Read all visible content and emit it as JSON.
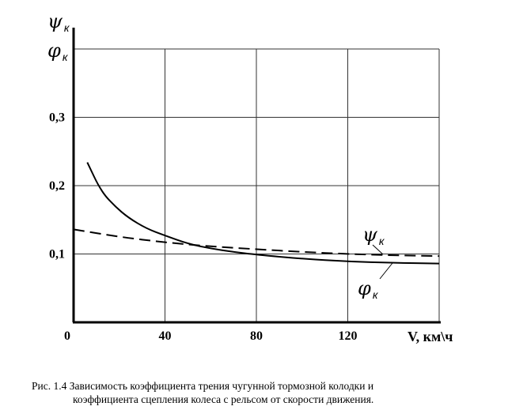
{
  "chart_data": {
    "type": "line",
    "title": "",
    "xlabel": "V,  км\\ч",
    "ylabel_top": {
      "symbol": "ψ",
      "subscript": "к"
    },
    "ylabel_bottom": {
      "symbol": "φ",
      "subscript": "к"
    },
    "xlim": [
      0,
      160
    ],
    "ylim": [
      0,
      0.4
    ],
    "x_ticks": [
      {
        "value": 0,
        "label": "0"
      },
      {
        "value": 40,
        "label": "40"
      },
      {
        "value": 80,
        "label": "80"
      },
      {
        "value": 120,
        "label": "120"
      }
    ],
    "y_ticks": [
      {
        "value": 0.1,
        "label": "0,1"
      },
      {
        "value": 0.2,
        "label": "0,2"
      },
      {
        "value": 0.3,
        "label": "0,3"
      }
    ],
    "grid": true,
    "series": [
      {
        "name": "φк",
        "style": "solid",
        "label": {
          "symbol": "φ",
          "subscript": "к"
        },
        "x": [
          6,
          12,
          18,
          24,
          32,
          40,
          50,
          60,
          70,
          80,
          100,
          120,
          140,
          160
        ],
        "y": [
          0.234,
          0.192,
          0.17,
          0.153,
          0.137,
          0.127,
          0.115,
          0.108,
          0.103,
          0.099,
          0.093,
          0.089,
          0.087,
          0.086
        ]
      },
      {
        "name": "ψк",
        "style": "dashed",
        "label": {
          "symbol": "ψ",
          "subscript": "к"
        },
        "x": [
          0,
          20,
          40,
          60,
          80,
          100,
          120,
          140,
          160
        ],
        "y": [
          0.136,
          0.125,
          0.117,
          0.111,
          0.107,
          0.103,
          0.1,
          0.098,
          0.097
        ]
      }
    ]
  },
  "caption": {
    "line1": "Рис. 1.4  Зависимость коэффициента трения чугунной тормозной колодки и",
    "line2": "коэффициента сцепления колеса с рельсом от скорости движения."
  }
}
